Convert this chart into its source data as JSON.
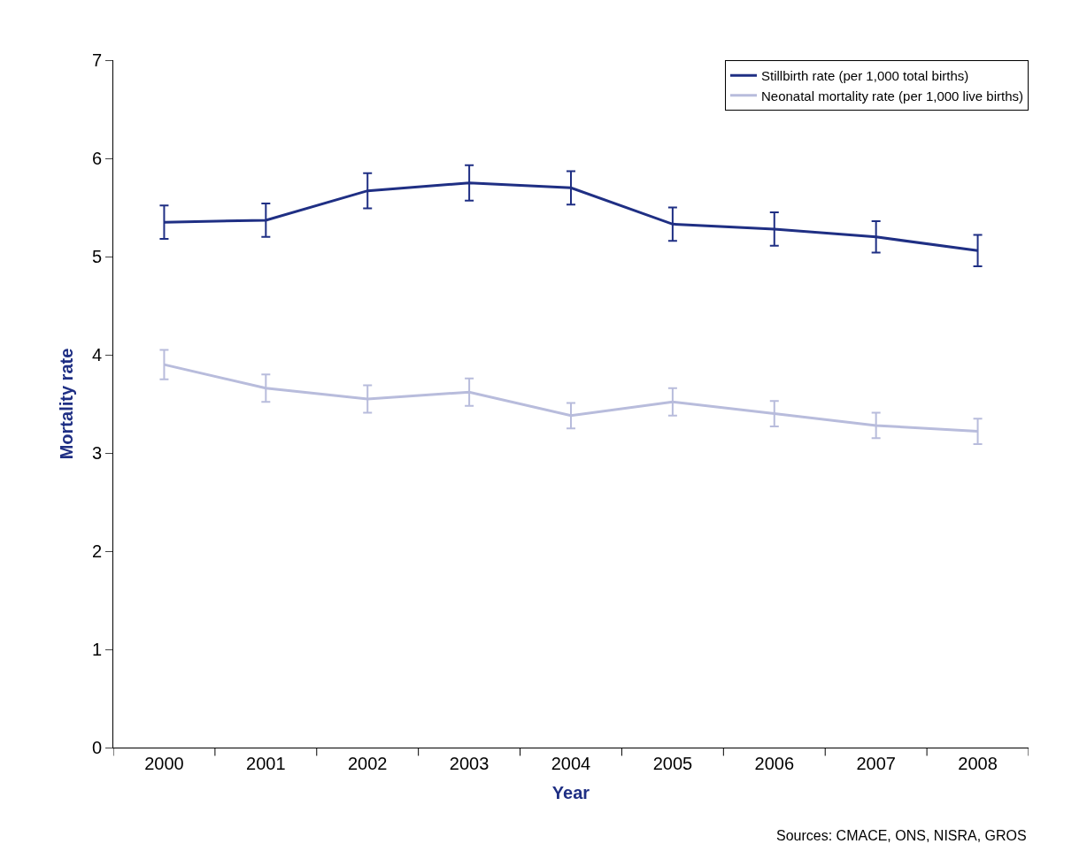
{
  "chart_data": {
    "type": "line",
    "xlabel": "Year",
    "ylabel": "Mortality rate",
    "categories": [
      "2000",
      "2001",
      "2002",
      "2003",
      "2004",
      "2005",
      "2006",
      "2007",
      "2008"
    ],
    "series": [
      {
        "name": "Stillbirth rate (per 1,000 total births)",
        "color": "#1f2f84",
        "values": [
          5.35,
          5.37,
          5.67,
          5.75,
          5.7,
          5.33,
          5.28,
          5.2,
          5.06
        ],
        "errors": [
          0.17,
          0.17,
          0.18,
          0.18,
          0.17,
          0.17,
          0.17,
          0.16,
          0.16
        ]
      },
      {
        "name": "Neonatal mortality rate (per 1,000 live births)",
        "color": "#b8bcdc",
        "values": [
          3.9,
          3.66,
          3.55,
          3.62,
          3.38,
          3.52,
          3.4,
          3.28,
          3.22
        ],
        "errors": [
          0.15,
          0.14,
          0.14,
          0.14,
          0.13,
          0.14,
          0.13,
          0.13,
          0.13
        ]
      }
    ],
    "ylim": [
      0,
      7
    ],
    "yticks": [
      0,
      1,
      2,
      3,
      4,
      5,
      6,
      7
    ],
    "legend": "top right",
    "marker": "none",
    "line_style": "solid",
    "annotations": [
      "Sources: CMACE, ONS, NISRA, GROS"
    ]
  }
}
